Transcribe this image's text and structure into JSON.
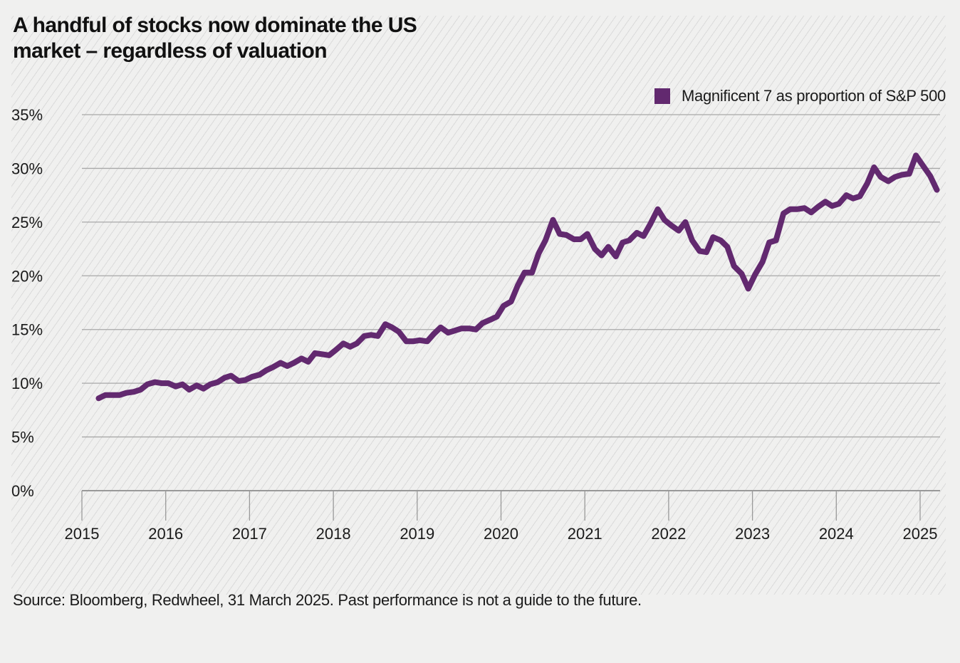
{
  "chart_data": {
    "type": "line",
    "title": "A handful of stocks now dominate the US market – regardless of valuation",
    "xlabel": "",
    "ylabel": "",
    "x_ticks": [
      "2015",
      "2016",
      "2017",
      "2018",
      "2019",
      "2020",
      "2021",
      "2022",
      "2023",
      "2024",
      "2025"
    ],
    "y_ticks": [
      "0%",
      "5%",
      "10%",
      "15%",
      "20%",
      "25%",
      "30%",
      "35%"
    ],
    "y_tick_values": [
      0,
      5,
      10,
      15,
      20,
      25,
      30,
      35
    ],
    "ylim": [
      0,
      35
    ],
    "xlim": [
      2015.0,
      2025.25
    ],
    "grid": "horizontal",
    "legend_position": "top-right",
    "series": [
      {
        "name": "Magnificent 7 as proportion of S&P 500",
        "color": "#62296f",
        "x": [
          2015.2,
          2015.28,
          2015.37,
          2015.45,
          2015.53,
          2015.62,
          2015.7,
          2015.78,
          2015.87,
          2015.95,
          2016.03,
          2016.12,
          2016.2,
          2016.28,
          2016.37,
          2016.45,
          2016.53,
          2016.62,
          2016.7,
          2016.78,
          2016.87,
          2016.95,
          2017.03,
          2017.12,
          2017.2,
          2017.28,
          2017.37,
          2017.45,
          2017.53,
          2017.62,
          2017.7,
          2017.78,
          2017.87,
          2017.95,
          2018.03,
          2018.12,
          2018.2,
          2018.28,
          2018.37,
          2018.45,
          2018.53,
          2018.62,
          2018.7,
          2018.78,
          2018.87,
          2018.95,
          2019.03,
          2019.12,
          2019.2,
          2019.28,
          2019.37,
          2019.45,
          2019.53,
          2019.62,
          2019.7,
          2019.78,
          2019.87,
          2019.95,
          2020.03,
          2020.12,
          2020.2,
          2020.28,
          2020.37,
          2020.45,
          2020.53,
          2020.62,
          2020.7,
          2020.78,
          2020.87,
          2020.95,
          2021.03,
          2021.12,
          2021.2,
          2021.28,
          2021.37,
          2021.45,
          2021.53,
          2021.62,
          2021.7,
          2021.78,
          2021.87,
          2021.95,
          2022.03,
          2022.12,
          2022.2,
          2022.28,
          2022.37,
          2022.45,
          2022.53,
          2022.62,
          2022.7,
          2022.78,
          2022.87,
          2022.95,
          2023.03,
          2023.12,
          2023.2,
          2023.28,
          2023.37,
          2023.45,
          2023.53,
          2023.62,
          2023.7,
          2023.78,
          2023.87,
          2023.95,
          2024.03,
          2024.12,
          2024.2,
          2024.28,
          2024.37,
          2024.45,
          2024.53,
          2024.62,
          2024.7,
          2024.78,
          2024.87,
          2024.95,
          2025.03,
          2025.12,
          2025.2
        ],
        "values": [
          8.6,
          8.9,
          8.9,
          8.9,
          9.1,
          9.2,
          9.4,
          9.9,
          10.1,
          10.0,
          10.0,
          9.7,
          9.9,
          9.4,
          9.8,
          9.5,
          9.9,
          10.1,
          10.5,
          10.7,
          10.2,
          10.3,
          10.6,
          10.8,
          11.2,
          11.5,
          11.9,
          11.6,
          11.9,
          12.3,
          12.0,
          12.8,
          12.7,
          12.6,
          13.1,
          13.7,
          13.4,
          13.7,
          14.4,
          14.5,
          14.4,
          15.5,
          15.2,
          14.8,
          13.9,
          13.9,
          14.0,
          13.9,
          14.6,
          15.2,
          14.7,
          14.9,
          15.1,
          15.1,
          15.0,
          15.6,
          15.9,
          16.2,
          17.2,
          17.6,
          19.1,
          20.3,
          20.3,
          22.1,
          23.3,
          25.2,
          23.9,
          23.8,
          23.4,
          23.4,
          23.9,
          22.5,
          21.9,
          22.7,
          21.8,
          23.1,
          23.3,
          24.0,
          23.7,
          24.8,
          26.2,
          25.2,
          24.7,
          24.2,
          25.0,
          23.3,
          22.3,
          22.2,
          23.6,
          23.3,
          22.7,
          20.9,
          20.2,
          18.8,
          20.1,
          21.3,
          23.1,
          23.3,
          25.8,
          26.2,
          26.2,
          26.3,
          25.9,
          26.4,
          26.9,
          26.5,
          26.7,
          27.5,
          27.2,
          27.4,
          28.6,
          30.1,
          29.2,
          28.8,
          29.2,
          29.4,
          29.5,
          31.2,
          30.3,
          29.3,
          28.0
        ]
      }
    ],
    "source": "Source: Bloomberg, Redwheel, 31 March 2025. Past performance is not a guide to the future."
  },
  "header": {
    "title_line1": "A handful of stocks now dominate the US",
    "title_line2": "market – regardless of valuation"
  },
  "legend": {
    "label": "Magnificent 7 as proportion of S&P 500",
    "color": "#62296f"
  },
  "footer": {
    "source": "Source: Bloomberg, Redwheel, 31 March 2025. Past performance is not a guide to the future."
  }
}
